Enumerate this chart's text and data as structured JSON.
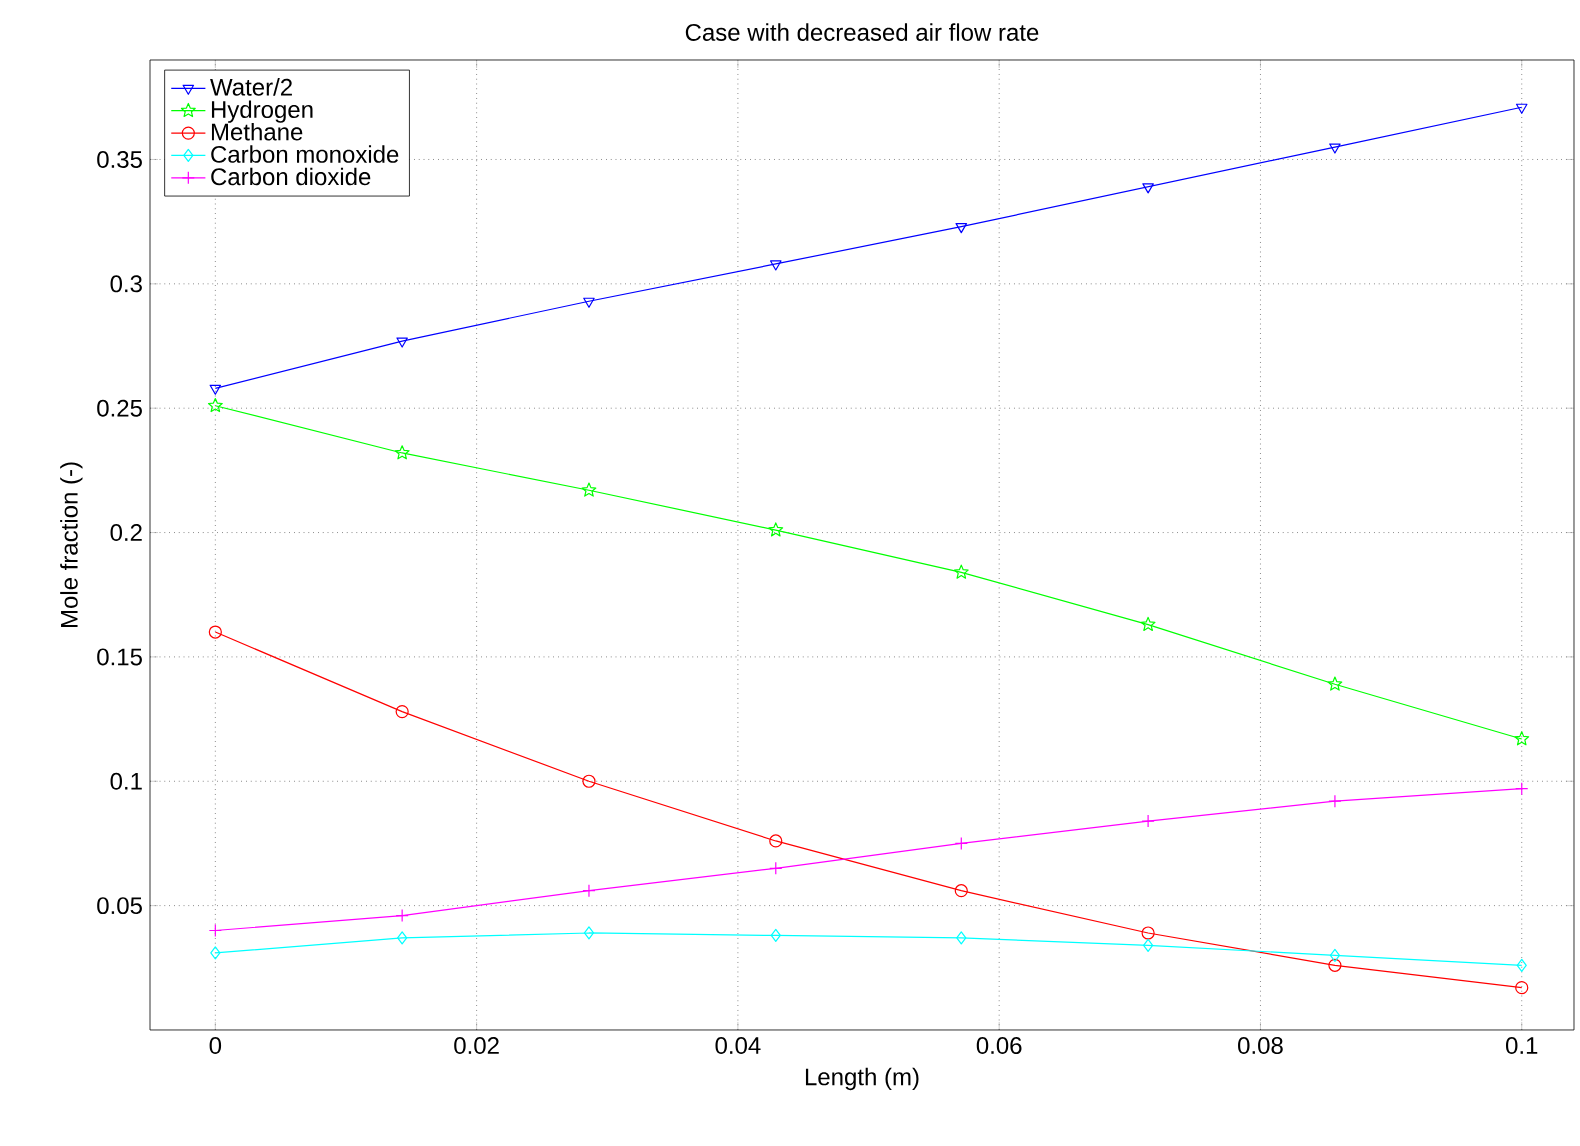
{
  "chart_data": {
    "type": "line",
    "title": "Case with decreased air flow rate",
    "xlabel": "Length (m)",
    "ylabel": "Mole fraction (-)",
    "x": [
      0,
      0.0143,
      0.0286,
      0.0429,
      0.0571,
      0.0714,
      0.0857,
      0.1
    ],
    "series": [
      {
        "name": "Water/2",
        "color": "#0000ff",
        "marker": "triangle",
        "values": [
          0.258,
          0.277,
          0.293,
          0.308,
          0.323,
          0.339,
          0.355,
          0.371
        ]
      },
      {
        "name": "Hydrogen",
        "color": "#00ff00",
        "marker": "star",
        "values": [
          0.251,
          0.232,
          0.217,
          0.201,
          0.184,
          0.163,
          0.139,
          0.117
        ]
      },
      {
        "name": "Methane",
        "color": "#ff0000",
        "marker": "circle",
        "values": [
          0.16,
          0.128,
          0.1,
          0.076,
          0.056,
          0.039,
          0.026,
          0.017
        ]
      },
      {
        "name": "Carbon monoxide",
        "color": "#00ffff",
        "marker": "diamond",
        "values": [
          0.031,
          0.037,
          0.039,
          0.038,
          0.037,
          0.034,
          0.03,
          0.026
        ]
      },
      {
        "name": "Carbon dioxide",
        "color": "#ff00ff",
        "marker": "cross",
        "values": [
          0.04,
          0.046,
          0.056,
          0.065,
          0.075,
          0.084,
          0.092,
          0.097
        ]
      }
    ],
    "xlim": [
      -0.005,
      0.104
    ],
    "ylim": [
      0,
      0.39
    ],
    "xticks": [
      0,
      0.02,
      0.04,
      0.06,
      0.08,
      0.1
    ],
    "yticks": [
      0.05,
      0.1,
      0.15,
      0.2,
      0.25,
      0.3,
      0.35
    ],
    "grid": true,
    "legend": "top left",
    "line_style": "solid"
  }
}
